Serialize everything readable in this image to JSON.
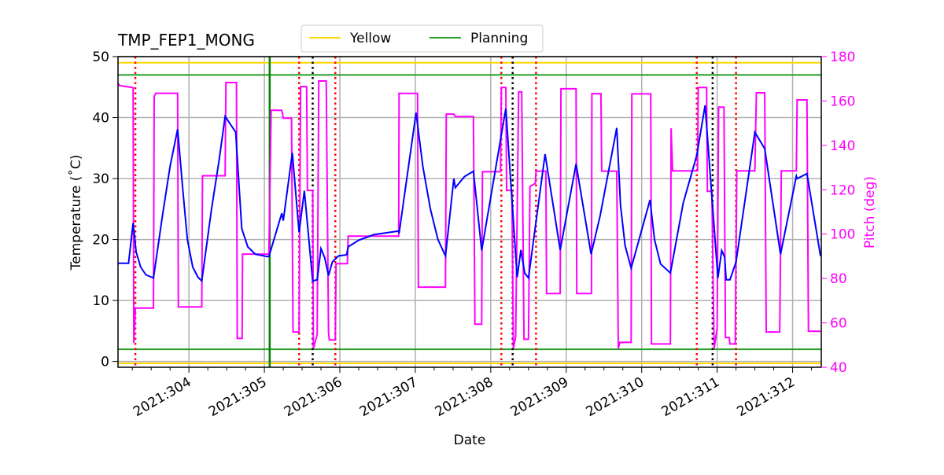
{
  "chart_data": {
    "type": "line",
    "title": "TMP_FEP1_MONG",
    "xlabel": "Date",
    "ylabel": "Temperature ($^\\circ$C)",
    "ylabel_display": "Temperature (˚C)",
    "y2label": "Pitch (deg)",
    "xlim": [
      303.06,
      312.38
    ],
    "ylim": [
      -0.95,
      50
    ],
    "y2lim": [
      40,
      180
    ],
    "grid": true,
    "legend_position": "top-center",
    "x_ticks": [
      304,
      305,
      306,
      307,
      308,
      309,
      310,
      311,
      312
    ],
    "x_tick_labels": [
      "2021:304",
      "2021:305",
      "2021:306",
      "2021:307",
      "2021:308",
      "2021:309",
      "2021:310",
      "2021:311",
      "2021:312"
    ],
    "y_ticks": [
      0,
      10,
      20,
      30,
      40,
      50
    ],
    "y2_ticks": [
      40,
      60,
      80,
      100,
      120,
      140,
      160,
      180
    ],
    "colors": {
      "temperature": "#0000ff",
      "pitch": "#ff00ff",
      "yellow": "#ffd700",
      "planning": "#2ca02c",
      "green_vline": "#008000",
      "red_vline": "#ff0000",
      "black_vline": "#000000",
      "grid": "#b0b0b0"
    },
    "limit_lines": [
      {
        "name": "Yellow",
        "values": [
          49,
          -0.3
        ],
        "color": "#ffd700",
        "in_legend": true
      },
      {
        "name": "Planning",
        "values": [
          47,
          2
        ],
        "color": "#2ca02c",
        "in_legend": true
      }
    ],
    "vlines": {
      "green": [
        305.07
      ],
      "red_dotted": [
        303.29,
        305.46,
        305.94,
        308.14,
        308.6,
        310.73,
        311.25
      ],
      "black_dotted": [
        305.64,
        308.29,
        310.94
      ]
    },
    "temperature": [
      [
        303.06,
        16.1
      ],
      [
        303.2,
        16.1
      ],
      [
        303.26,
        22.7
      ],
      [
        303.3,
        18.0
      ],
      [
        303.36,
        15.5
      ],
      [
        303.43,
        14.2
      ],
      [
        303.53,
        13.7
      ],
      [
        303.65,
        24.0
      ],
      [
        303.75,
        32.0
      ],
      [
        303.85,
        38.1
      ],
      [
        303.92,
        28.0
      ],
      [
        303.98,
        20.0
      ],
      [
        304.05,
        15.5
      ],
      [
        304.12,
        13.8
      ],
      [
        304.17,
        13.2
      ],
      [
        304.3,
        25.0
      ],
      [
        304.4,
        33.0
      ],
      [
        304.48,
        40.2
      ],
      [
        304.62,
        37.6
      ],
      [
        304.7,
        21.8
      ],
      [
        304.78,
        18.8
      ],
      [
        304.88,
        17.6
      ],
      [
        305.04,
        17.2
      ],
      [
        305.06,
        17.2
      ],
      [
        305.23,
        24.3
      ],
      [
        305.25,
        23.1
      ],
      [
        305.37,
        34.2
      ],
      [
        305.46,
        21.2
      ],
      [
        305.53,
        28.0
      ],
      [
        305.64,
        13.2
      ],
      [
        305.7,
        13.4
      ],
      [
        305.75,
        18.5
      ],
      [
        305.8,
        17.0
      ],
      [
        305.85,
        14.1
      ],
      [
        305.9,
        16.3
      ],
      [
        305.98,
        17.3
      ],
      [
        306.09,
        17.5
      ],
      [
        306.11,
        18.8
      ],
      [
        306.25,
        19.9
      ],
      [
        306.45,
        20.8
      ],
      [
        306.78,
        21.4
      ],
      [
        306.785,
        21.0
      ],
      [
        307.01,
        40.8
      ],
      [
        307.1,
        32.0
      ],
      [
        307.2,
        25.0
      ],
      [
        307.3,
        20.0
      ],
      [
        307.4,
        17.3
      ],
      [
        307.51,
        30.0
      ],
      [
        307.53,
        28.5
      ],
      [
        307.65,
        30.3
      ],
      [
        307.77,
        31.2
      ],
      [
        307.88,
        18.2
      ],
      [
        308.2,
        41.5
      ],
      [
        308.35,
        13.8
      ],
      [
        308.4,
        18.3
      ],
      [
        308.45,
        14.5
      ],
      [
        308.5,
        13.7
      ],
      [
        308.72,
        34.0
      ],
      [
        308.92,
        18.3
      ],
      [
        309.13,
        32.4
      ],
      [
        309.33,
        17.6
      ],
      [
        309.45,
        23.9
      ],
      [
        309.67,
        38.3
      ],
      [
        309.72,
        25.6
      ],
      [
        309.78,
        19.0
      ],
      [
        309.86,
        15.3
      ],
      [
        310.11,
        26.5
      ],
      [
        310.17,
        20.0
      ],
      [
        310.25,
        16.0
      ],
      [
        310.38,
        14.5
      ],
      [
        310.55,
        26.0
      ],
      [
        310.73,
        33.8
      ],
      [
        310.84,
        42.0
      ],
      [
        311.01,
        13.7
      ],
      [
        311.06,
        18.2
      ],
      [
        311.1,
        17.1
      ],
      [
        311.12,
        13.4
      ],
      [
        311.17,
        13.4
      ],
      [
        311.25,
        16.3
      ],
      [
        311.5,
        37.6
      ],
      [
        311.63,
        34.9
      ],
      [
        311.84,
        17.6
      ],
      [
        312.05,
        30.4
      ],
      [
        312.06,
        30.0
      ],
      [
        312.19,
        30.8
      ],
      [
        312.37,
        17.3
      ]
    ],
    "pitch": [
      [
        303.06,
        168
      ],
      [
        303.08,
        167
      ],
      [
        303.26,
        166
      ],
      [
        303.27,
        51
      ],
      [
        303.29,
        66.7
      ],
      [
        303.53,
        66.7
      ],
      [
        303.54,
        162
      ],
      [
        303.56,
        163.5
      ],
      [
        303.85,
        163.5
      ],
      [
        303.86,
        67.2
      ],
      [
        304.17,
        67.2
      ],
      [
        304.18,
        126.3
      ],
      [
        304.48,
        126.3
      ],
      [
        304.49,
        168.3
      ],
      [
        304.63,
        168.3
      ],
      [
        304.64,
        53
      ],
      [
        304.705,
        53
      ],
      [
        304.71,
        91
      ],
      [
        305.06,
        91
      ],
      [
        305.09,
        155.8
      ],
      [
        305.23,
        155.8
      ],
      [
        305.25,
        152.3
      ],
      [
        305.36,
        152.3
      ],
      [
        305.38,
        55.9
      ],
      [
        305.46,
        55.9
      ],
      [
        305.48,
        166.5
      ],
      [
        305.56,
        166.5
      ],
      [
        305.57,
        119.7
      ],
      [
        305.64,
        119.7
      ],
      [
        305.65,
        48.4
      ],
      [
        305.7,
        54.8
      ],
      [
        305.72,
        169
      ],
      [
        305.82,
        169
      ],
      [
        305.85,
        55.9
      ],
      [
        305.86,
        52.3
      ],
      [
        305.94,
        52.3
      ],
      [
        305.95,
        86.7
      ],
      [
        306.1,
        86.7
      ],
      [
        306.11,
        99.1
      ],
      [
        306.78,
        99.1
      ],
      [
        306.785,
        163.4
      ],
      [
        307.03,
        163.4
      ],
      [
        307.04,
        76.1
      ],
      [
        307.4,
        76.1
      ],
      [
        307.41,
        154.1
      ],
      [
        307.51,
        154.1
      ],
      [
        307.53,
        153
      ],
      [
        307.77,
        153
      ],
      [
        307.79,
        59.4
      ],
      [
        307.88,
        59.4
      ],
      [
        307.89,
        128.1
      ],
      [
        308.13,
        128.1
      ],
      [
        308.14,
        166.1
      ],
      [
        308.2,
        166.1
      ],
      [
        308.21,
        119.7
      ],
      [
        308.28,
        119.7
      ],
      [
        308.3,
        48.4
      ],
      [
        308.33,
        53.7
      ],
      [
        308.37,
        164.1
      ],
      [
        308.41,
        164.1
      ],
      [
        308.44,
        52.6
      ],
      [
        308.5,
        52.6
      ],
      [
        308.52,
        121.5
      ],
      [
        308.59,
        122.9
      ],
      [
        308.6,
        128.4
      ],
      [
        308.73,
        128.4
      ],
      [
        308.74,
        73.2
      ],
      [
        308.92,
        73.2
      ],
      [
        308.93,
        165.5
      ],
      [
        309.13,
        165.5
      ],
      [
        309.14,
        73.2
      ],
      [
        309.335,
        73.2
      ],
      [
        309.34,
        163.3
      ],
      [
        309.46,
        163.3
      ],
      [
        309.47,
        128.4
      ],
      [
        309.67,
        128.4
      ],
      [
        309.69,
        48.4
      ],
      [
        309.71,
        51.2
      ],
      [
        309.86,
        51.2
      ],
      [
        309.87,
        163.2
      ],
      [
        310.12,
        163.2
      ],
      [
        310.13,
        50.5
      ],
      [
        310.38,
        50.5
      ],
      [
        310.39,
        147.7
      ],
      [
        310.41,
        128.5
      ],
      [
        310.74,
        128.5
      ],
      [
        310.75,
        166.1
      ],
      [
        310.86,
        166.1
      ],
      [
        310.87,
        119.3
      ],
      [
        310.93,
        119.3
      ],
      [
        310.96,
        48.4
      ],
      [
        311.0,
        57.6
      ],
      [
        311.02,
        157.2
      ],
      [
        311.09,
        157.2
      ],
      [
        311.11,
        53.4
      ],
      [
        311.16,
        53.4
      ],
      [
        311.17,
        50.5
      ],
      [
        311.24,
        50.5
      ],
      [
        311.26,
        128.5
      ],
      [
        311.5,
        128.5
      ],
      [
        311.52,
        163.7
      ],
      [
        311.63,
        163.7
      ],
      [
        311.65,
        55.9
      ],
      [
        311.83,
        55.9
      ],
      [
        311.85,
        128.5
      ],
      [
        312.05,
        128.5
      ],
      [
        312.06,
        160.5
      ],
      [
        312.19,
        160.5
      ],
      [
        312.21,
        56.2
      ],
      [
        312.37,
        56.2
      ]
    ],
    "legend": [
      {
        "label": "Yellow",
        "color": "#ffd700"
      },
      {
        "label": "Planning",
        "color": "#2ca02c"
      }
    ]
  }
}
